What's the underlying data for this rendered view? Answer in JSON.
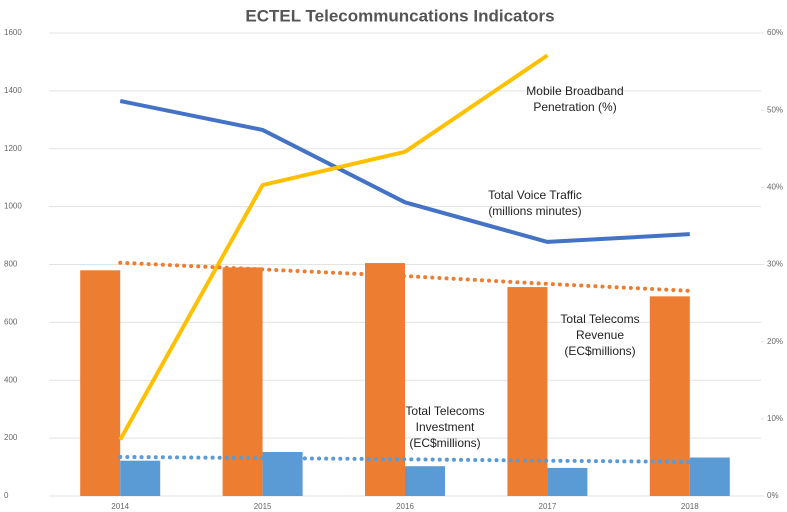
{
  "chart_data": {
    "type": "bar",
    "title": "ECTEL Telecommuncations Indicators",
    "categories": [
      "2014",
      "2015",
      "2016",
      "2017",
      "2018"
    ],
    "ylim": [
      0,
      1600
    ],
    "yticks": [
      0,
      200,
      400,
      600,
      800,
      1000,
      1200,
      1400,
      1600
    ],
    "y2lim": [
      0,
      60
    ],
    "y2ticks": [
      {
        "value": 0,
        "label": "0%"
      },
      {
        "value": 10,
        "label": "10%"
      },
      {
        "value": 20,
        "label": "20%"
      },
      {
        "value": 30,
        "label": "30%"
      },
      {
        "value": 40,
        "label": "40%"
      },
      {
        "value": 50,
        "label": "50%"
      },
      {
        "value": 60,
        "label": "60%"
      }
    ],
    "grid": true,
    "series": [
      {
        "label": [
          "Total Telecoms",
          "Revenue",
          "(EC$millions)"
        ],
        "type": "bar",
        "color": "#ed7d31",
        "values": [
          780,
          790,
          805,
          722,
          690
        ]
      },
      {
        "label": [
          "Total Telecoms",
          "Investment",
          "(EC$millions)"
        ],
        "type": "bar",
        "color": "#5b9bd5",
        "values": [
          122,
          152,
          103,
          97,
          133
        ]
      },
      {
        "label": [
          "Total Voice Traffic",
          "(millions minutes)"
        ],
        "type": "line",
        "color": "#4472c4",
        "values": [
          1365,
          1265,
          1015,
          878,
          905
        ]
      },
      {
        "label": [
          "Mobile Broadband",
          "Penetration (%)"
        ],
        "type": "line",
        "color": "#ffc000",
        "axis": "y2",
        "values": [
          7.3,
          40.3,
          44.6,
          57.1,
          null
        ]
      },
      {
        "type": "dotted",
        "color": "#ed7d31",
        "values": [
          806,
          783,
          760,
          733,
          709
        ]
      },
      {
        "type": "dotted",
        "color": "#5b9bd5",
        "values": [
          135,
          131,
          127,
          122,
          118
        ]
      }
    ]
  }
}
